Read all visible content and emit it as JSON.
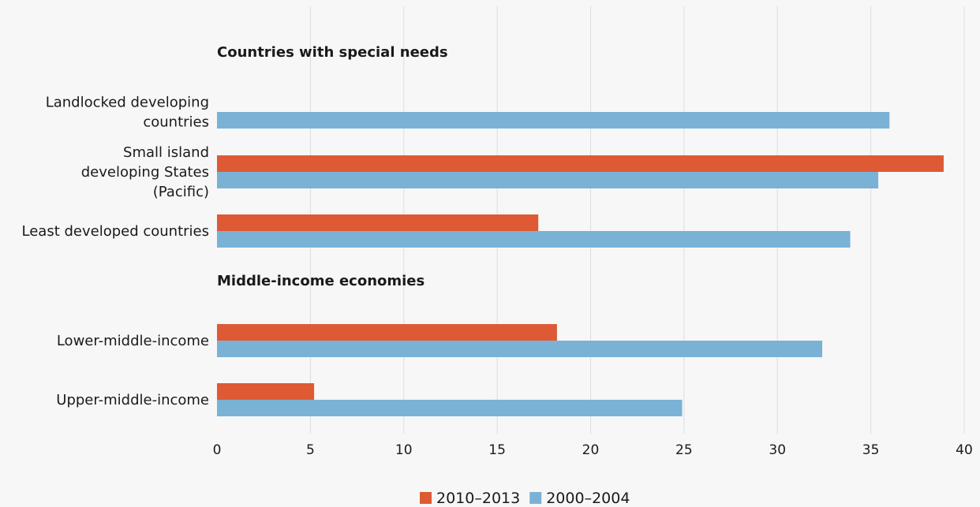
{
  "chart_data": {
    "type": "bar",
    "orientation": "horizontal",
    "groups": [
      {
        "label": "Countries with special needs"
      },
      {
        "label": "Middle-income economies"
      }
    ],
    "categories": [
      {
        "lines": [
          "Landlocked developing",
          "countries"
        ],
        "group": 0
      },
      {
        "lines": [
          "Small island",
          "developing States",
          "(Pacific)"
        ],
        "group": 0
      },
      {
        "lines": [
          "Least developed countries"
        ],
        "group": 0
      },
      {
        "lines": [
          "Lower-middle-income"
        ],
        "group": 1
      },
      {
        "lines": [
          "Upper-middle-income"
        ],
        "group": 1
      }
    ],
    "series": [
      {
        "name": "2010–2013",
        "color": "#dd5a35",
        "values": [
          null,
          38.9,
          17.2,
          18.2,
          5.2
        ]
      },
      {
        "name": "2000–2004",
        "color": "#7ab2d6",
        "values": [
          36.0,
          35.4,
          33.9,
          32.4,
          24.9
        ]
      }
    ],
    "xlim": [
      0,
      40
    ],
    "xticks": [
      "0",
      "5",
      "10",
      "15",
      "20",
      "25",
      "30",
      "35",
      "40"
    ],
    "grid": true,
    "legend_position": "bottom"
  }
}
